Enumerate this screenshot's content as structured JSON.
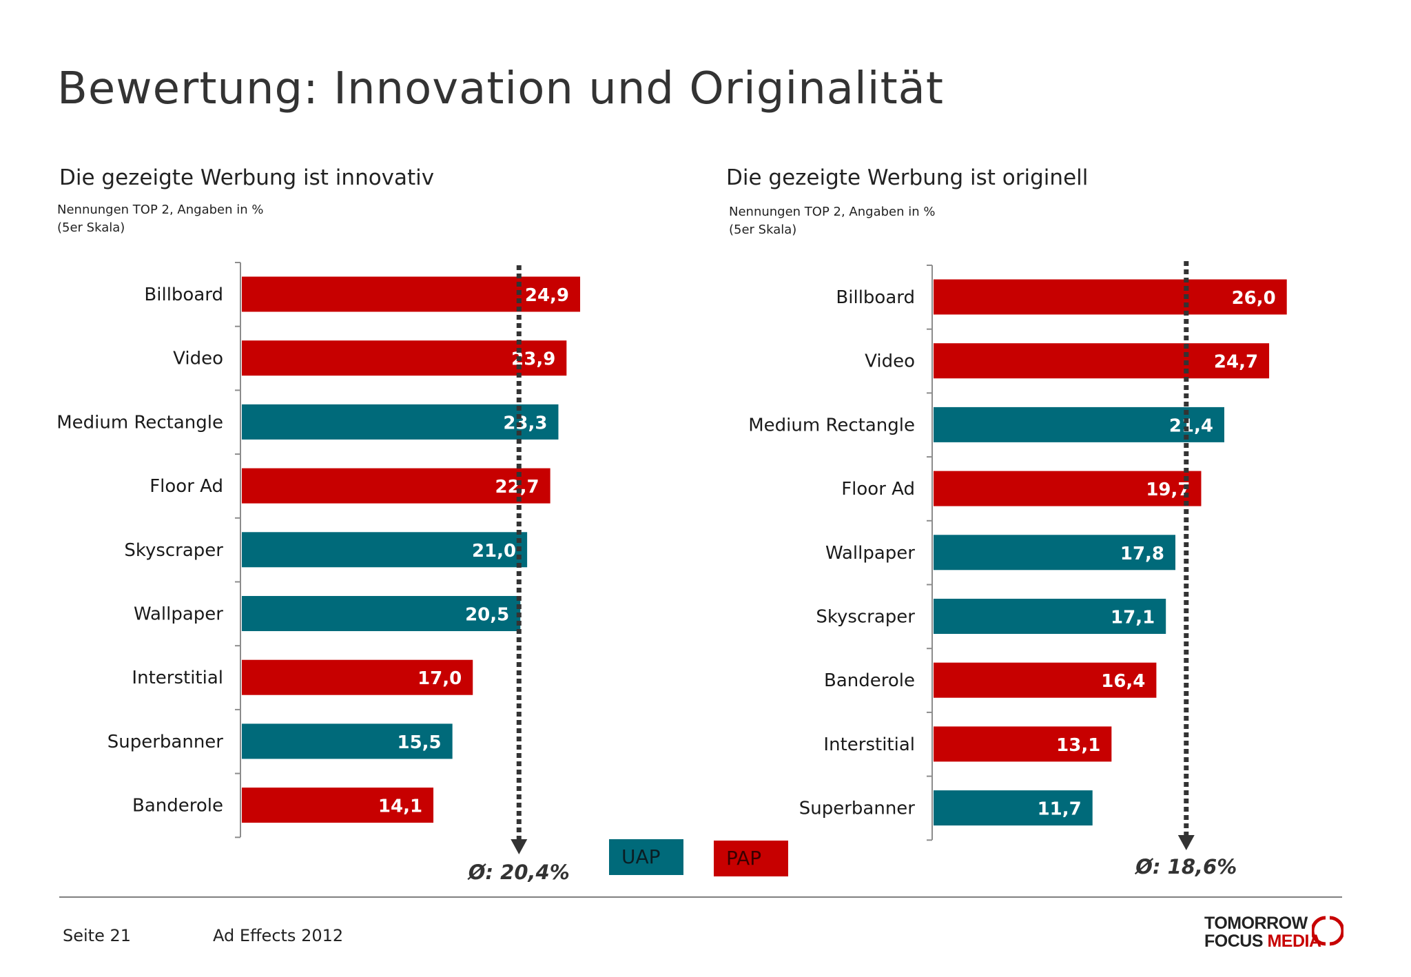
{
  "page": {
    "title": "Bewertung: Innovation und Originalität",
    "footer_page": "Seite 21",
    "footer_study": "Ad Effects 2012",
    "logo_line1": "TOMORROW",
    "logo_line2_a": "FOCUS",
    "logo_line2_b": "MEDIA"
  },
  "legend": {
    "uap_label": "UAP",
    "pap_label": "PAP"
  },
  "colors": {
    "UAP": "#006a7a",
    "PAP": "#c70000",
    "text": "#1a1a1a",
    "average_line": "#333333"
  },
  "chart_data": [
    {
      "type": "bar",
      "orientation": "horizontal",
      "title": "Die gezeigte Werbung ist innovativ",
      "note_line1": "Nennungen TOP 2, Angaben in %",
      "note_line2": "(5er Skala)",
      "categories": [
        "Billboard",
        "Video",
        "Medium Rectangle",
        "Floor Ad",
        "Skyscraper",
        "Wallpaper",
        "Interstitial",
        "Superbanner",
        "Banderole"
      ],
      "values": [
        24.9,
        23.9,
        23.3,
        22.7,
        21.0,
        20.5,
        17.0,
        15.5,
        14.1
      ],
      "labels": [
        "24,9",
        "23,9",
        "23,3",
        "22,7",
        "21,0",
        "20,5",
        "17,0",
        "15,5",
        "14,1"
      ],
      "groups": [
        "PAP",
        "PAP",
        "UAP",
        "PAP",
        "UAP",
        "UAP",
        "PAP",
        "UAP",
        "PAP"
      ],
      "average": 20.4,
      "average_label": "Ø: 20,4%",
      "xlim": [
        0,
        26
      ]
    },
    {
      "type": "bar",
      "orientation": "horizontal",
      "title": "Die gezeigte Werbung ist originell",
      "note_line1": "Nennungen TOP 2, Angaben in %",
      "note_line2": "(5er Skala)",
      "categories": [
        "Billboard",
        "Video",
        "Medium Rectangle",
        "Floor Ad",
        "Wallpaper",
        "Skyscraper",
        "Banderole",
        "Interstitial",
        "Superbanner"
      ],
      "values": [
        26.0,
        24.7,
        21.4,
        19.7,
        17.8,
        17.1,
        16.4,
        13.1,
        11.7
      ],
      "labels": [
        "26,0",
        "24,7",
        "21,4",
        "19,7",
        "17,8",
        "17,1",
        "16,4",
        "13,1",
        "11,7"
      ],
      "groups": [
        "PAP",
        "PAP",
        "UAP",
        "PAP",
        "UAP",
        "UAP",
        "PAP",
        "PAP",
        "UAP"
      ],
      "average": 18.6,
      "average_label": "Ø: 18,6%",
      "xlim": [
        0,
        26
      ]
    }
  ]
}
